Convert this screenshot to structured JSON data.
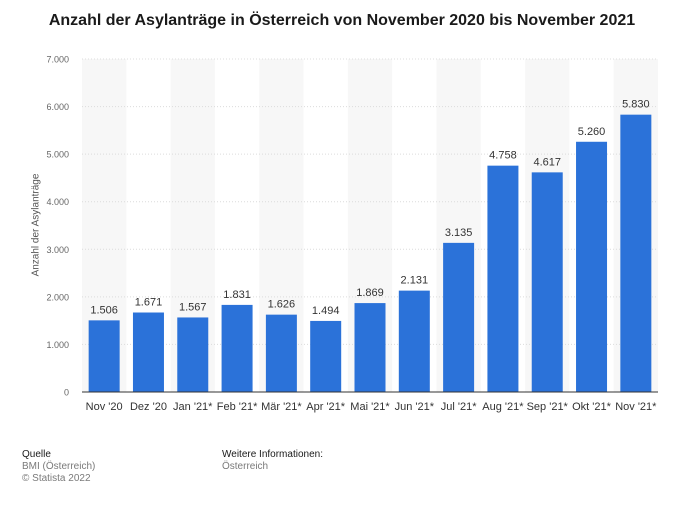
{
  "chart_data": {
    "type": "bar",
    "title": "Anzahl der Asylanträge in Österreich von November 2020 bis November 2021",
    "xlabel": "",
    "ylabel": "Anzahl der Asylanträge",
    "categories": [
      "Nov '20",
      "Dez '20",
      "Jan '21*",
      "Feb '21*",
      "Mär '21*",
      "Apr '21*",
      "Mai '21*",
      "Jun '21*",
      "Jul '21*",
      "Aug '21*",
      "Sep '21*",
      "Okt '21*",
      "Nov '21*"
    ],
    "values": [
      1506,
      1671,
      1567,
      1831,
      1626,
      1494,
      1869,
      2131,
      3135,
      4758,
      4617,
      5260,
      5830
    ],
    "value_labels": [
      "1.506",
      "1.671",
      "1.567",
      "1.831",
      "1.626",
      "1.494",
      "1.869",
      "2.131",
      "3.135",
      "4.758",
      "4.617",
      "5.260",
      "5.830"
    ],
    "ylim": [
      0,
      7000
    ],
    "yticks": [
      0,
      1000,
      2000,
      3000,
      4000,
      5000,
      6000,
      7000
    ],
    "ytick_labels": [
      "0",
      "1.000",
      "2.000",
      "3.000",
      "4.000",
      "5.000",
      "6.000",
      "7.000"
    ],
    "grid": true,
    "bar_color": "#2b72d9"
  },
  "footer": {
    "source_heading": "Quelle",
    "source_lines": [
      "BMI (Österreich)",
      "© Statista 2022"
    ],
    "info_heading": "Weitere Informationen:",
    "info_lines": [
      "Österreich"
    ]
  }
}
